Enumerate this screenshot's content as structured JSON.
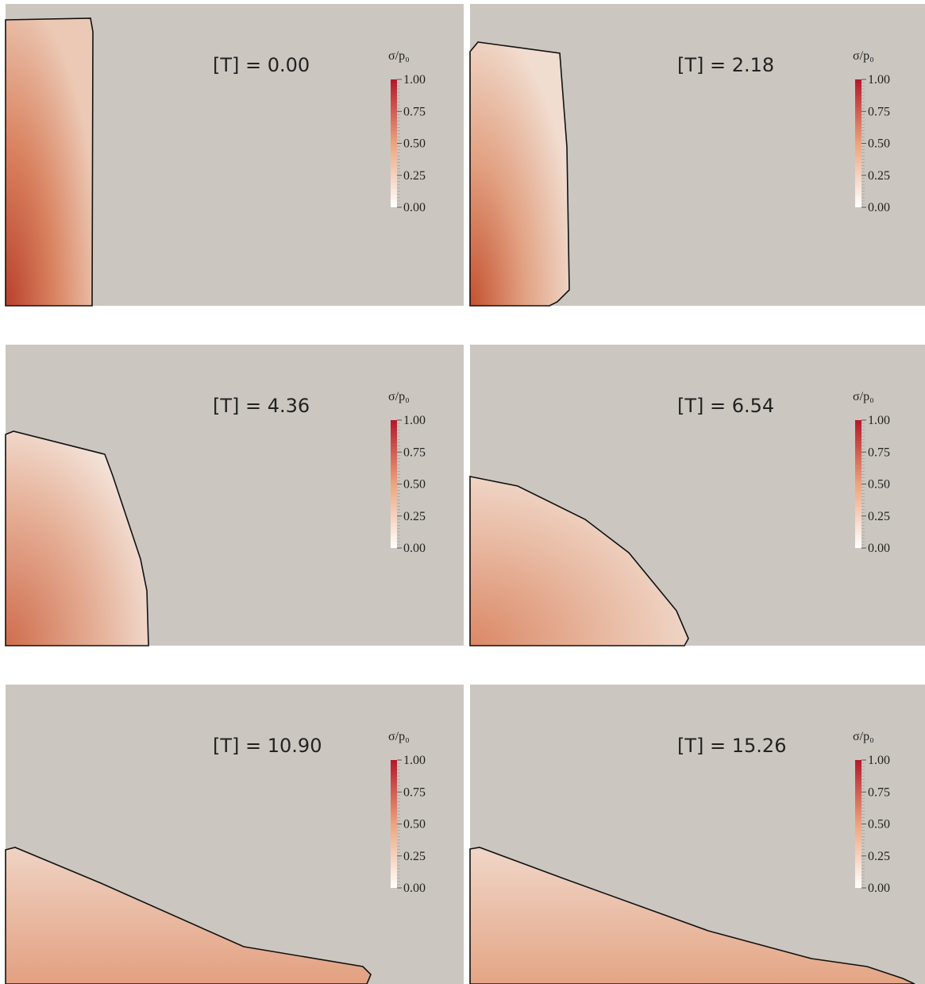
{
  "panels": [
    {
      "label": "[T] = 0.00",
      "colorbar": {
        "title": "σ/p₀",
        "ticks": [
          "1.00",
          "0.75",
          "0.50",
          "0.25",
          "0.00"
        ]
      }
    },
    {
      "label": "[T] = 2.18",
      "colorbar": {
        "title": "σ/p₀",
        "ticks": [
          "1.00",
          "0.75",
          "0.50",
          "0.25",
          "0.00"
        ]
      }
    },
    {
      "label": "[T] = 4.36",
      "colorbar": {
        "title": "σ/p₀",
        "ticks": [
          "1.00",
          "0.75",
          "0.50",
          "0.25",
          "0.00"
        ]
      }
    },
    {
      "label": "[T] = 6.54",
      "colorbar": {
        "title": "σ/p₀",
        "ticks": [
          "1.00",
          "0.75",
          "0.50",
          "0.25",
          "0.00"
        ]
      }
    },
    {
      "label": "[T] = 10.90",
      "colorbar": {
        "title": "σ/p₀",
        "ticks": [
          "1.00",
          "0.75",
          "0.50",
          "0.25",
          "0.00"
        ]
      }
    },
    {
      "label": "[T] = 15.26",
      "colorbar": {
        "title": "σ/p₀",
        "ticks": [
          "1.00",
          "0.75",
          "0.50",
          "0.25",
          "0.00"
        ]
      }
    }
  ]
}
